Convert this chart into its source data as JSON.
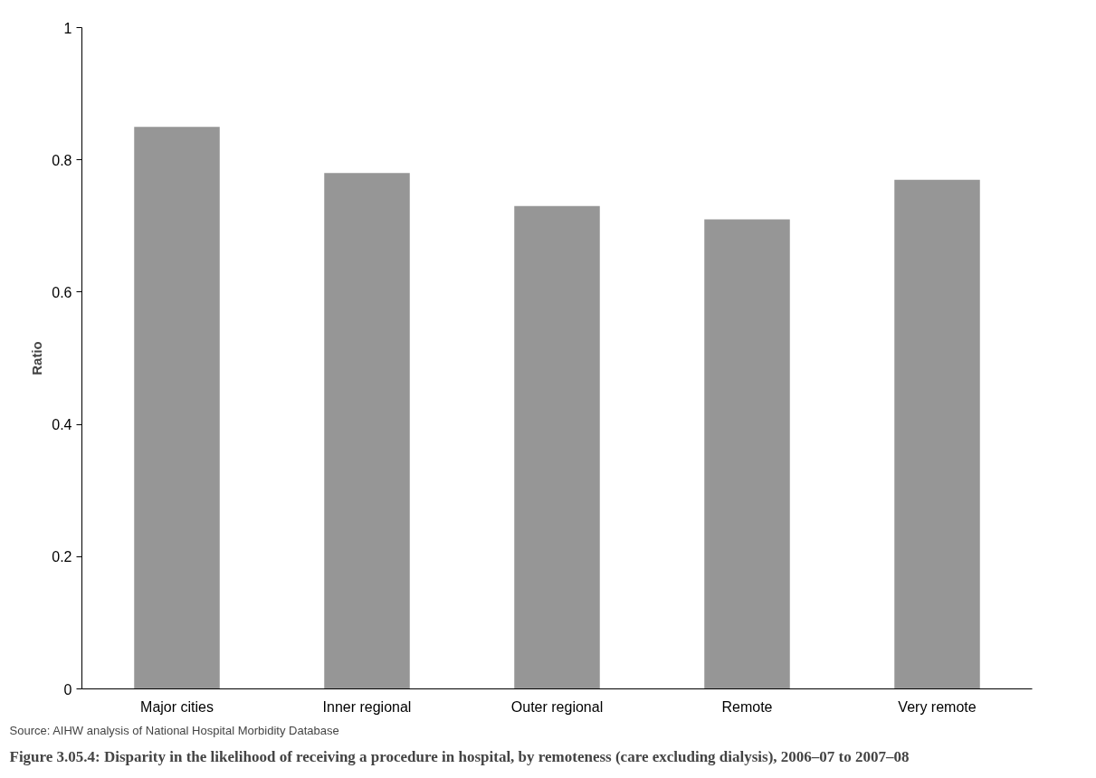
{
  "chart_data": {
    "type": "bar",
    "title": "Figure 3.05.4: Disparity in the likelihood of receiving a procedure in hospital, by remoteness (care excluding dialysis), 2006–07 to 2007–08",
    "ylabel": "Ratio",
    "categories": [
      "Major cities",
      "Inner regional",
      "Outer regional",
      "Remote",
      "Very remote"
    ],
    "values": [
      0.85,
      0.78,
      0.73,
      0.71,
      0.77
    ],
    "color": "#969696",
    "ylim": [
      0,
      1
    ],
    "yticks": [
      {
        "value": 0,
        "label": "0"
      },
      0.2,
      0.4,
      0.6,
      0.8,
      {
        "value": 1,
        "label": "1"
      }
    ],
    "grid": false,
    "annotations": [
      "Source: AIHW analysis of National Hospital Morbidity Database"
    ]
  }
}
